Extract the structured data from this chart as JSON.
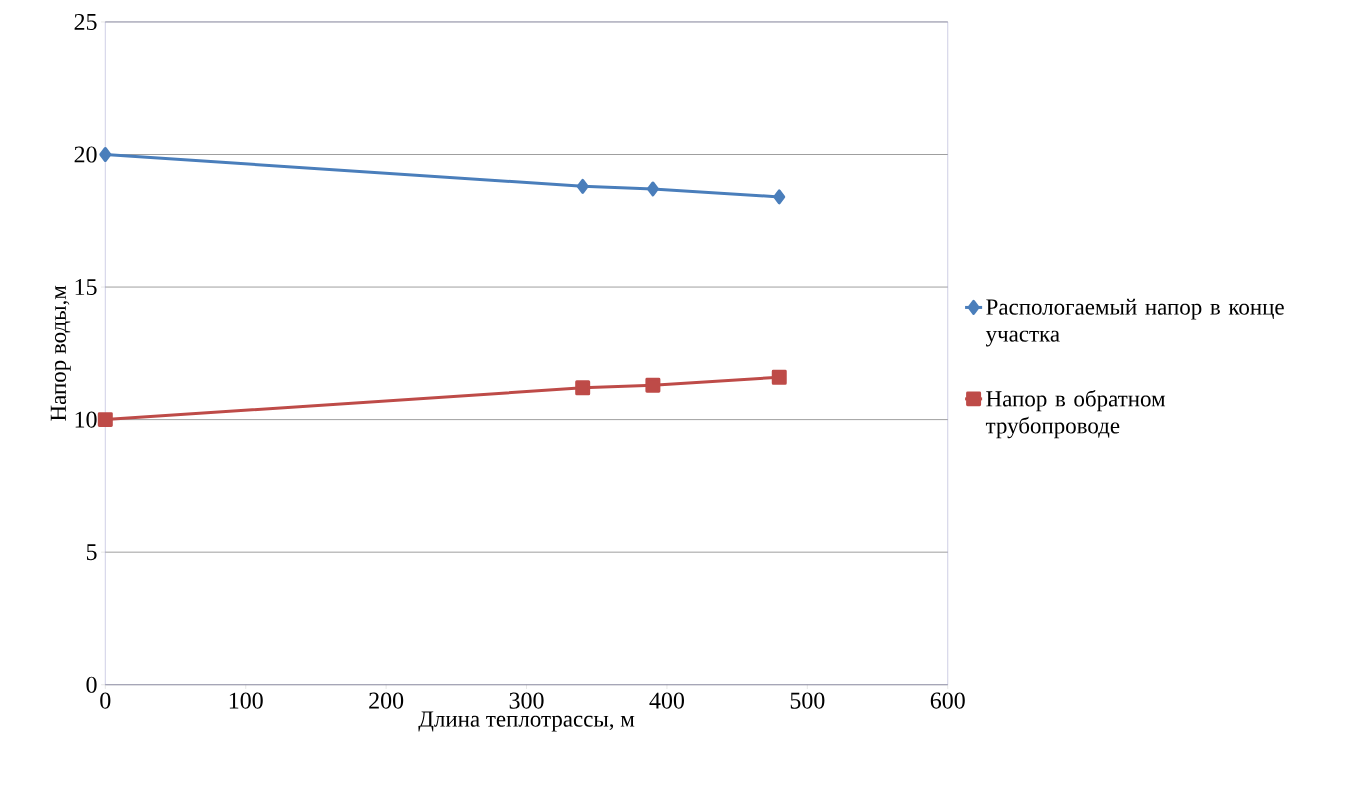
{
  "chart_data": {
    "type": "line",
    "xlabel": "Длина теплотрассы, м",
    "ylabel": "Напор воды,м",
    "xlim": [
      0,
      600
    ],
    "xticks": [
      0,
      100,
      200,
      300,
      400,
      500,
      600
    ],
    "ylim": [
      0,
      25
    ],
    "yticks": [
      0,
      5,
      10,
      15,
      20,
      25
    ],
    "grid": "y",
    "legend": "right",
    "line_style": "solid",
    "series": [
      {
        "name": "Распологаемый напор в конце участка",
        "color": "#4a7ebb",
        "marker": "diamond",
        "x": [
          0,
          340,
          390,
          480
        ],
        "values": [
          20,
          18.8,
          18.7,
          18.4
        ]
      },
      {
        "name": "Напор в обратном трубопроводе",
        "color": "#be4b48",
        "marker": "square",
        "x": [
          0,
          340,
          390,
          480
        ],
        "values": [
          10,
          11.2,
          11.3,
          11.6
        ]
      }
    ]
  }
}
